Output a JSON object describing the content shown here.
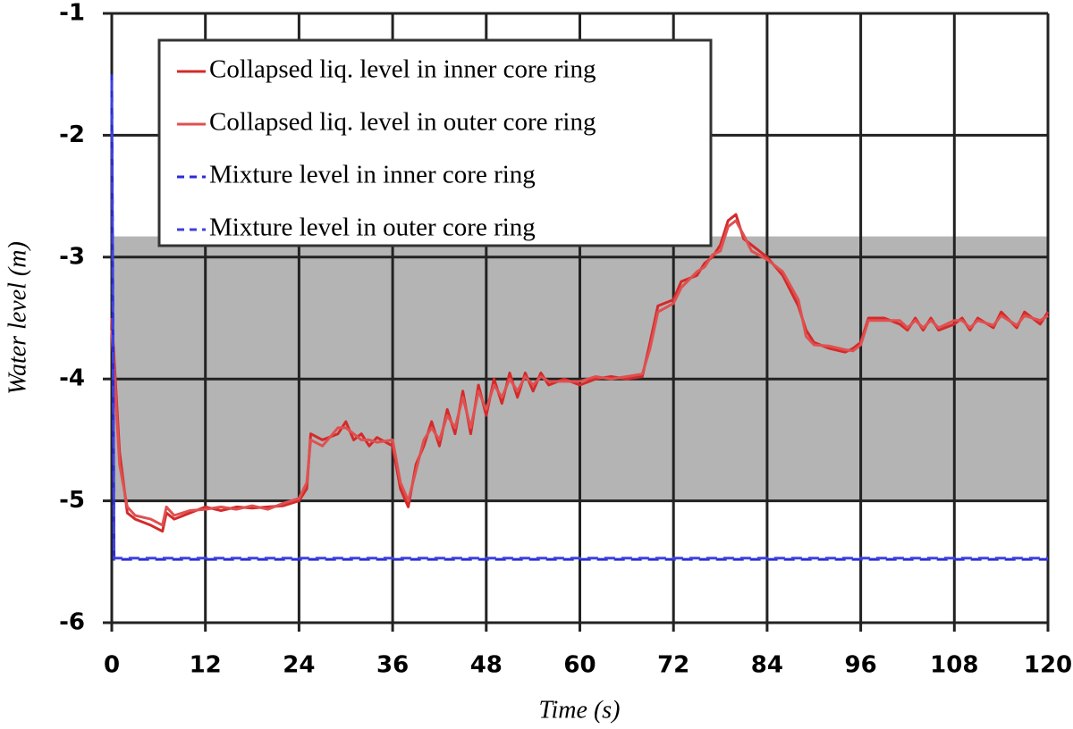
{
  "chart_data": {
    "type": "line",
    "xlabel": "Time (s)",
    "ylabel": "Water level (m)",
    "xlim": [
      0,
      120
    ],
    "ylim": [
      -6,
      -1
    ],
    "xticks": [
      0,
      12,
      24,
      36,
      48,
      60,
      72,
      84,
      96,
      108,
      120
    ],
    "yticks": [
      -6,
      -5,
      -4,
      -3,
      -2,
      -1
    ],
    "grid": true,
    "legend": "upper left",
    "shaded_band": {
      "ylim": [
        -5,
        -2.83
      ],
      "color": "#b4b4b4"
    },
    "series": [
      {
        "name": "Collapsed liq. level in inner core ring",
        "color": "#d42a2a",
        "line_style": "solid",
        "x": [
          0,
          1,
          2,
          3,
          5,
          6.5,
          7,
          8,
          10,
          12,
          14,
          16,
          18,
          20,
          22,
          24,
          25,
          25.5,
          27,
          29,
          30,
          31,
          32,
          33,
          34,
          36,
          37,
          38,
          39,
          40,
          41,
          42,
          43,
          44,
          45,
          46,
          47,
          48,
          49,
          50,
          51,
          52,
          53,
          54,
          55,
          56,
          58,
          60,
          62,
          64,
          66,
          68,
          69,
          70,
          72,
          73,
          75,
          76,
          77,
          78,
          79,
          80,
          81,
          82,
          84,
          86,
          88,
          89,
          90,
          92,
          94,
          95,
          96,
          97,
          99,
          101,
          102,
          103,
          104,
          105,
          106,
          108,
          109,
          110,
          111,
          113,
          114,
          116,
          117,
          119,
          120
        ],
        "values": [
          -3.5,
          -4.6,
          -5.1,
          -5.15,
          -5.2,
          -5.25,
          -5.1,
          -5.15,
          -5.1,
          -5.05,
          -5.08,
          -5.05,
          -5.06,
          -5.05,
          -5.04,
          -5.0,
          -4.9,
          -4.45,
          -4.5,
          -4.45,
          -4.35,
          -4.5,
          -4.45,
          -4.55,
          -4.48,
          -4.55,
          -4.9,
          -5.05,
          -4.7,
          -4.55,
          -4.35,
          -4.55,
          -4.25,
          -4.45,
          -4.1,
          -4.45,
          -4.05,
          -4.3,
          -4.0,
          -4.2,
          -3.95,
          -4.15,
          -3.95,
          -4.1,
          -3.95,
          -4.05,
          -4.0,
          -4.05,
          -4.0,
          -3.98,
          -4.0,
          -3.98,
          -3.7,
          -3.4,
          -3.35,
          -3.2,
          -3.15,
          -3.05,
          -3.0,
          -2.9,
          -2.7,
          -2.65,
          -2.85,
          -2.9,
          -3.0,
          -3.15,
          -3.4,
          -3.6,
          -3.7,
          -3.75,
          -3.78,
          -3.75,
          -3.7,
          -3.5,
          -3.5,
          -3.55,
          -3.6,
          -3.5,
          -3.6,
          -3.5,
          -3.6,
          -3.55,
          -3.5,
          -3.6,
          -3.5,
          -3.58,
          -3.45,
          -3.58,
          -3.45,
          -3.55,
          -3.45
        ]
      },
      {
        "name": "Collapsed liq. level in outer core ring",
        "color": "#e05050",
        "line_style": "solid",
        "x": [
          0,
          1,
          2,
          3,
          5,
          6.5,
          7,
          8,
          10,
          12,
          14,
          16,
          18,
          20,
          22,
          24,
          25,
          25.5,
          27,
          29,
          30,
          31,
          32,
          33,
          34,
          36,
          37,
          38,
          39,
          40,
          41,
          42,
          43,
          44,
          45,
          46,
          47,
          48,
          49,
          50,
          51,
          52,
          53,
          54,
          55,
          56,
          58,
          60,
          62,
          64,
          66,
          68,
          69,
          70,
          72,
          73,
          75,
          76,
          77,
          78,
          79,
          80,
          81,
          82,
          84,
          86,
          88,
          89,
          90,
          92,
          94,
          95,
          96,
          97,
          99,
          101,
          102,
          103,
          104,
          105,
          106,
          108,
          109,
          110,
          111,
          113,
          114,
          116,
          117,
          119,
          120
        ],
        "values": [
          -3.6,
          -4.7,
          -5.05,
          -5.12,
          -5.15,
          -5.2,
          -5.05,
          -5.12,
          -5.08,
          -5.07,
          -5.05,
          -5.07,
          -5.04,
          -5.07,
          -5.02,
          -4.98,
          -4.85,
          -4.5,
          -4.55,
          -4.4,
          -4.4,
          -4.45,
          -4.5,
          -4.5,
          -4.52,
          -4.5,
          -4.85,
          -5.0,
          -4.75,
          -4.5,
          -4.4,
          -4.5,
          -4.3,
          -4.4,
          -4.15,
          -4.4,
          -4.1,
          -4.25,
          -4.05,
          -4.15,
          -4.0,
          -4.1,
          -3.98,
          -4.05,
          -3.98,
          -4.02,
          -4.02,
          -4.02,
          -3.98,
          -4.0,
          -3.98,
          -3.96,
          -3.75,
          -3.45,
          -3.38,
          -3.25,
          -3.12,
          -3.08,
          -2.98,
          -2.95,
          -2.75,
          -2.7,
          -2.82,
          -2.95,
          -3.02,
          -3.12,
          -3.35,
          -3.65,
          -3.72,
          -3.73,
          -3.76,
          -3.77,
          -3.72,
          -3.52,
          -3.52,
          -3.52,
          -3.58,
          -3.52,
          -3.58,
          -3.52,
          -3.58,
          -3.52,
          -3.52,
          -3.58,
          -3.52,
          -3.56,
          -3.48,
          -3.56,
          -3.48,
          -3.52,
          -3.48
        ]
      },
      {
        "name": "Mixture level in inner core ring",
        "color": "#2b2bd8",
        "line_style": "dashed",
        "x": [
          0,
          0.3,
          120
        ],
        "values": [
          -1.5,
          -5.48,
          -5.48
        ]
      },
      {
        "name": "Mixture level in outer core ring",
        "color": "#4040e0",
        "line_style": "dashed",
        "x": [
          0,
          0.3,
          120
        ],
        "values": [
          -1.55,
          -5.47,
          -5.47
        ]
      }
    ]
  }
}
